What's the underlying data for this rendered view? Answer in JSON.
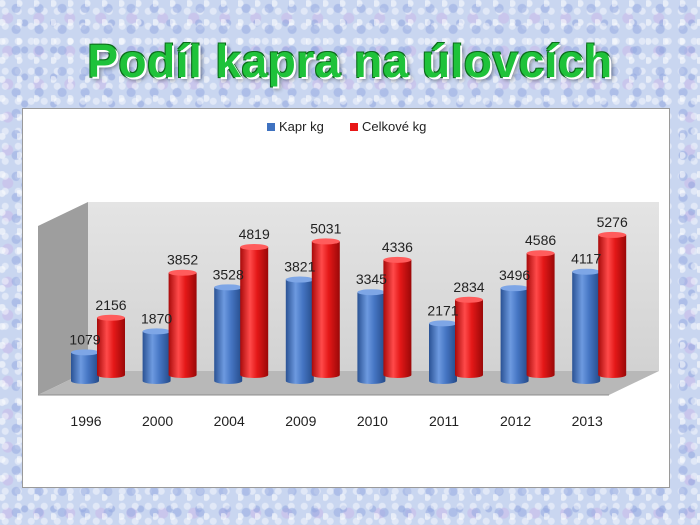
{
  "slide": {
    "title": "Podíl kapra na úlovcích"
  },
  "colors": {
    "series_blue": "#3f72c0",
    "series_red": "#e81616",
    "title_green": "#1fc23a"
  },
  "chart_data": {
    "type": "bar",
    "style": "3d-cylinder",
    "categories": [
      "1996",
      "2000",
      "2004",
      "2009",
      "2010",
      "2011",
      "2012",
      "2013"
    ],
    "series": [
      {
        "name": "Kapr kg",
        "values": [
          1079,
          1870,
          3528,
          3821,
          3345,
          2171,
          3496,
          4117
        ]
      },
      {
        "name": "Celkové kg",
        "values": [
          2156,
          3852,
          4819,
          5031,
          4336,
          2834,
          4586,
          5276
        ]
      }
    ],
    "ylim": [
      0,
      6000
    ],
    "legend": "top-center",
    "grid": false,
    "data_labels": true
  }
}
